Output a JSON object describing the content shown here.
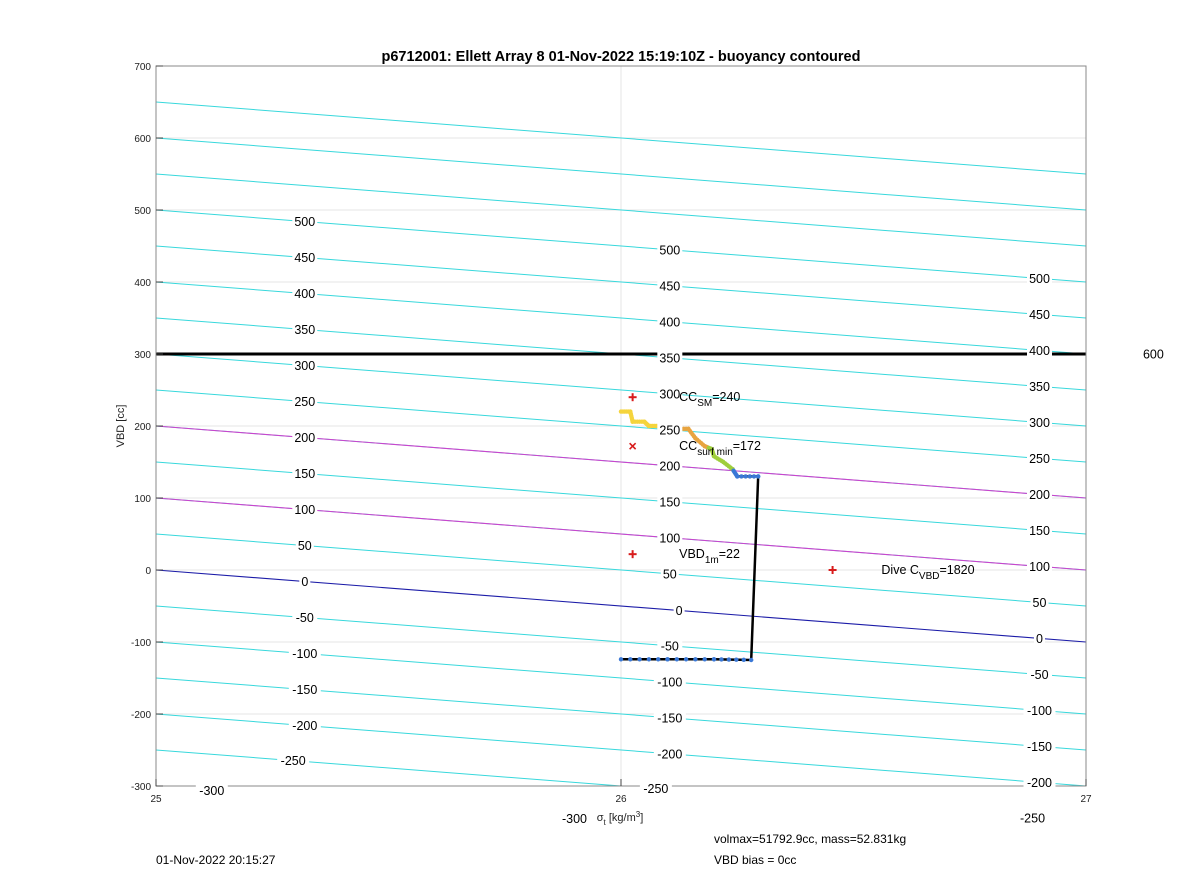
{
  "chart_data": {
    "type": "scatter",
    "title": "p6712001: Ellett Array 8 01-Nov-2022 15:19:10Z - buoyancy contoured",
    "xlabel_symbol": "σ",
    "xlabel_sub": "t",
    "xlabel_unit": " [kg/m",
    "xlabel_unit_sup": "3",
    "xlabel_close": "]",
    "ylabel": "VBD [cc]",
    "xlim": [
      25,
      27
    ],
    "ylim": [
      -300,
      700
    ],
    "xticks": [
      25,
      26,
      27
    ],
    "yticks": [
      -300,
      -200,
      -100,
      0,
      100,
      200,
      300,
      400,
      500,
      600,
      700
    ],
    "grid": true,
    "contours": {
      "slope_cc_per_sigma": -50,
      "cyan_levels": [
        -300,
        -250,
        -200,
        -150,
        -100,
        -50,
        50,
        100,
        150,
        200,
        250,
        300,
        350,
        400,
        450,
        500,
        550,
        600,
        650
      ],
      "magenta_levels": [
        100,
        200
      ],
      "zero_level": 0,
      "colors": {
        "cyan": "#38d8dc",
        "magenta": "#cc44cc",
        "zero": "#1c1ca8"
      },
      "labels": [
        {
          "x": 25.32,
          "v": 500
        },
        {
          "x": 25.32,
          "v": 450
        },
        {
          "x": 25.32,
          "v": 400
        },
        {
          "x": 25.32,
          "v": 350
        },
        {
          "x": 25.32,
          "v": 300
        },
        {
          "x": 25.32,
          "v": 250
        },
        {
          "x": 25.32,
          "v": 200
        },
        {
          "x": 25.32,
          "v": 150
        },
        {
          "x": 25.32,
          "v": 100
        },
        {
          "x": 25.32,
          "v": 50
        },
        {
          "x": 25.32,
          "v": 0
        },
        {
          "x": 25.32,
          "v": -50
        },
        {
          "x": 25.32,
          "v": -100
        },
        {
          "x": 25.32,
          "v": -150
        },
        {
          "x": 25.32,
          "v": -200
        },
        {
          "x": 25.295,
          "v": -250
        },
        {
          "x": 25.12,
          "v": -300
        },
        {
          "x": 26.105,
          "v": 500
        },
        {
          "x": 26.105,
          "v": 450
        },
        {
          "x": 26.105,
          "v": 400
        },
        {
          "x": 26.105,
          "v": 350
        },
        {
          "x": 26.105,
          "v": 300
        },
        {
          "x": 26.105,
          "v": 250
        },
        {
          "x": 26.105,
          "v": 200
        },
        {
          "x": 26.105,
          "v": 150
        },
        {
          "x": 26.105,
          "v": 100
        },
        {
          "x": 26.105,
          "v": 50
        },
        {
          "x": 26.125,
          "v": 0
        },
        {
          "x": 26.105,
          "v": -50
        },
        {
          "x": 26.105,
          "v": -100
        },
        {
          "x": 26.105,
          "v": -150
        },
        {
          "x": 26.105,
          "v": -200
        },
        {
          "x": 26.075,
          "v": -250
        },
        {
          "x": 25.9,
          "v": -300
        },
        {
          "x": 26.9,
          "v": 500
        },
        {
          "x": 26.9,
          "v": 450
        },
        {
          "x": 26.9,
          "v": 400
        },
        {
          "x": 26.9,
          "v": 350
        },
        {
          "x": 26.9,
          "v": 300
        },
        {
          "x": 26.9,
          "v": 250
        },
        {
          "x": 26.9,
          "v": 200
        },
        {
          "x": 26.9,
          "v": 150
        },
        {
          "x": 26.9,
          "v": 100
        },
        {
          "x": 26.9,
          "v": 50
        },
        {
          "x": 26.9,
          "v": 0
        },
        {
          "x": 26.9,
          "v": -50
        },
        {
          "x": 26.9,
          "v": -100
        },
        {
          "x": 26.9,
          "v": -150
        },
        {
          "x": 26.9,
          "v": -200
        },
        {
          "x": 26.885,
          "v": -250
        },
        {
          "x": 27.145,
          "v": 600
        }
      ]
    },
    "hline": {
      "y": 300,
      "color": "#000000"
    },
    "dive_path": [
      [
        26.0,
        220
      ],
      [
        26.02,
        220
      ],
      [
        26.025,
        206
      ],
      [
        26.05,
        206
      ],
      [
        26.06,
        200
      ],
      [
        26.08,
        200
      ],
      [
        26.1,
        200
      ],
      [
        26.12,
        196
      ],
      [
        26.145,
        196
      ],
      [
        26.16,
        183
      ],
      [
        26.18,
        172
      ],
      [
        26.195,
        168
      ],
      [
        26.2,
        158
      ],
      [
        26.22,
        150
      ],
      [
        26.24,
        140
      ],
      [
        26.25,
        130
      ],
      [
        26.295,
        130
      ],
      [
        26.28,
        -125
      ],
      [
        26.2,
        -124
      ],
      [
        26.1,
        -124
      ],
      [
        26.0,
        -124
      ]
    ],
    "dive_point_colors": [
      {
        "from": 200,
        "color": "#f5d43c"
      },
      {
        "from": 170,
        "color": "#e8a440"
      },
      {
        "from": 140,
        "color": "#9fce3c"
      },
      {
        "from": -200,
        "color": "#3a78d6"
      }
    ],
    "markers": [
      {
        "type": "plus",
        "x": 26.025,
        "y": 240,
        "color": "#d81c1c"
      },
      {
        "type": "x",
        "x": 26.025,
        "y": 172,
        "color": "#d81c1c"
      },
      {
        "type": "plus",
        "x": 26.025,
        "y": 22,
        "color": "#d81c1c"
      },
      {
        "type": "plus",
        "x": 26.455,
        "y": 0,
        "color": "#d81c1c"
      }
    ],
    "annotations": [
      {
        "x": 26.125,
        "y": 240,
        "base": "CC",
        "sub": "SM",
        "rest": "=240"
      },
      {
        "x": 26.125,
        "y": 172,
        "base": "CC",
        "sub": "surf min",
        "rest": "=172"
      },
      {
        "x": 26.125,
        "y": 22,
        "base": "VBD",
        "sub": "1m",
        "rest": "=22"
      },
      {
        "x": 26.56,
        "y": 0,
        "base": "Dive C",
        "sub": "VBD",
        "rest": "=1820"
      }
    ]
  },
  "footer": {
    "timestamp": "01-Nov-2022 20:15:27",
    "volmax": "volmax=51792.9cc, mass=52.831kg",
    "vbd_bias": "VBD bias = 0cc"
  }
}
